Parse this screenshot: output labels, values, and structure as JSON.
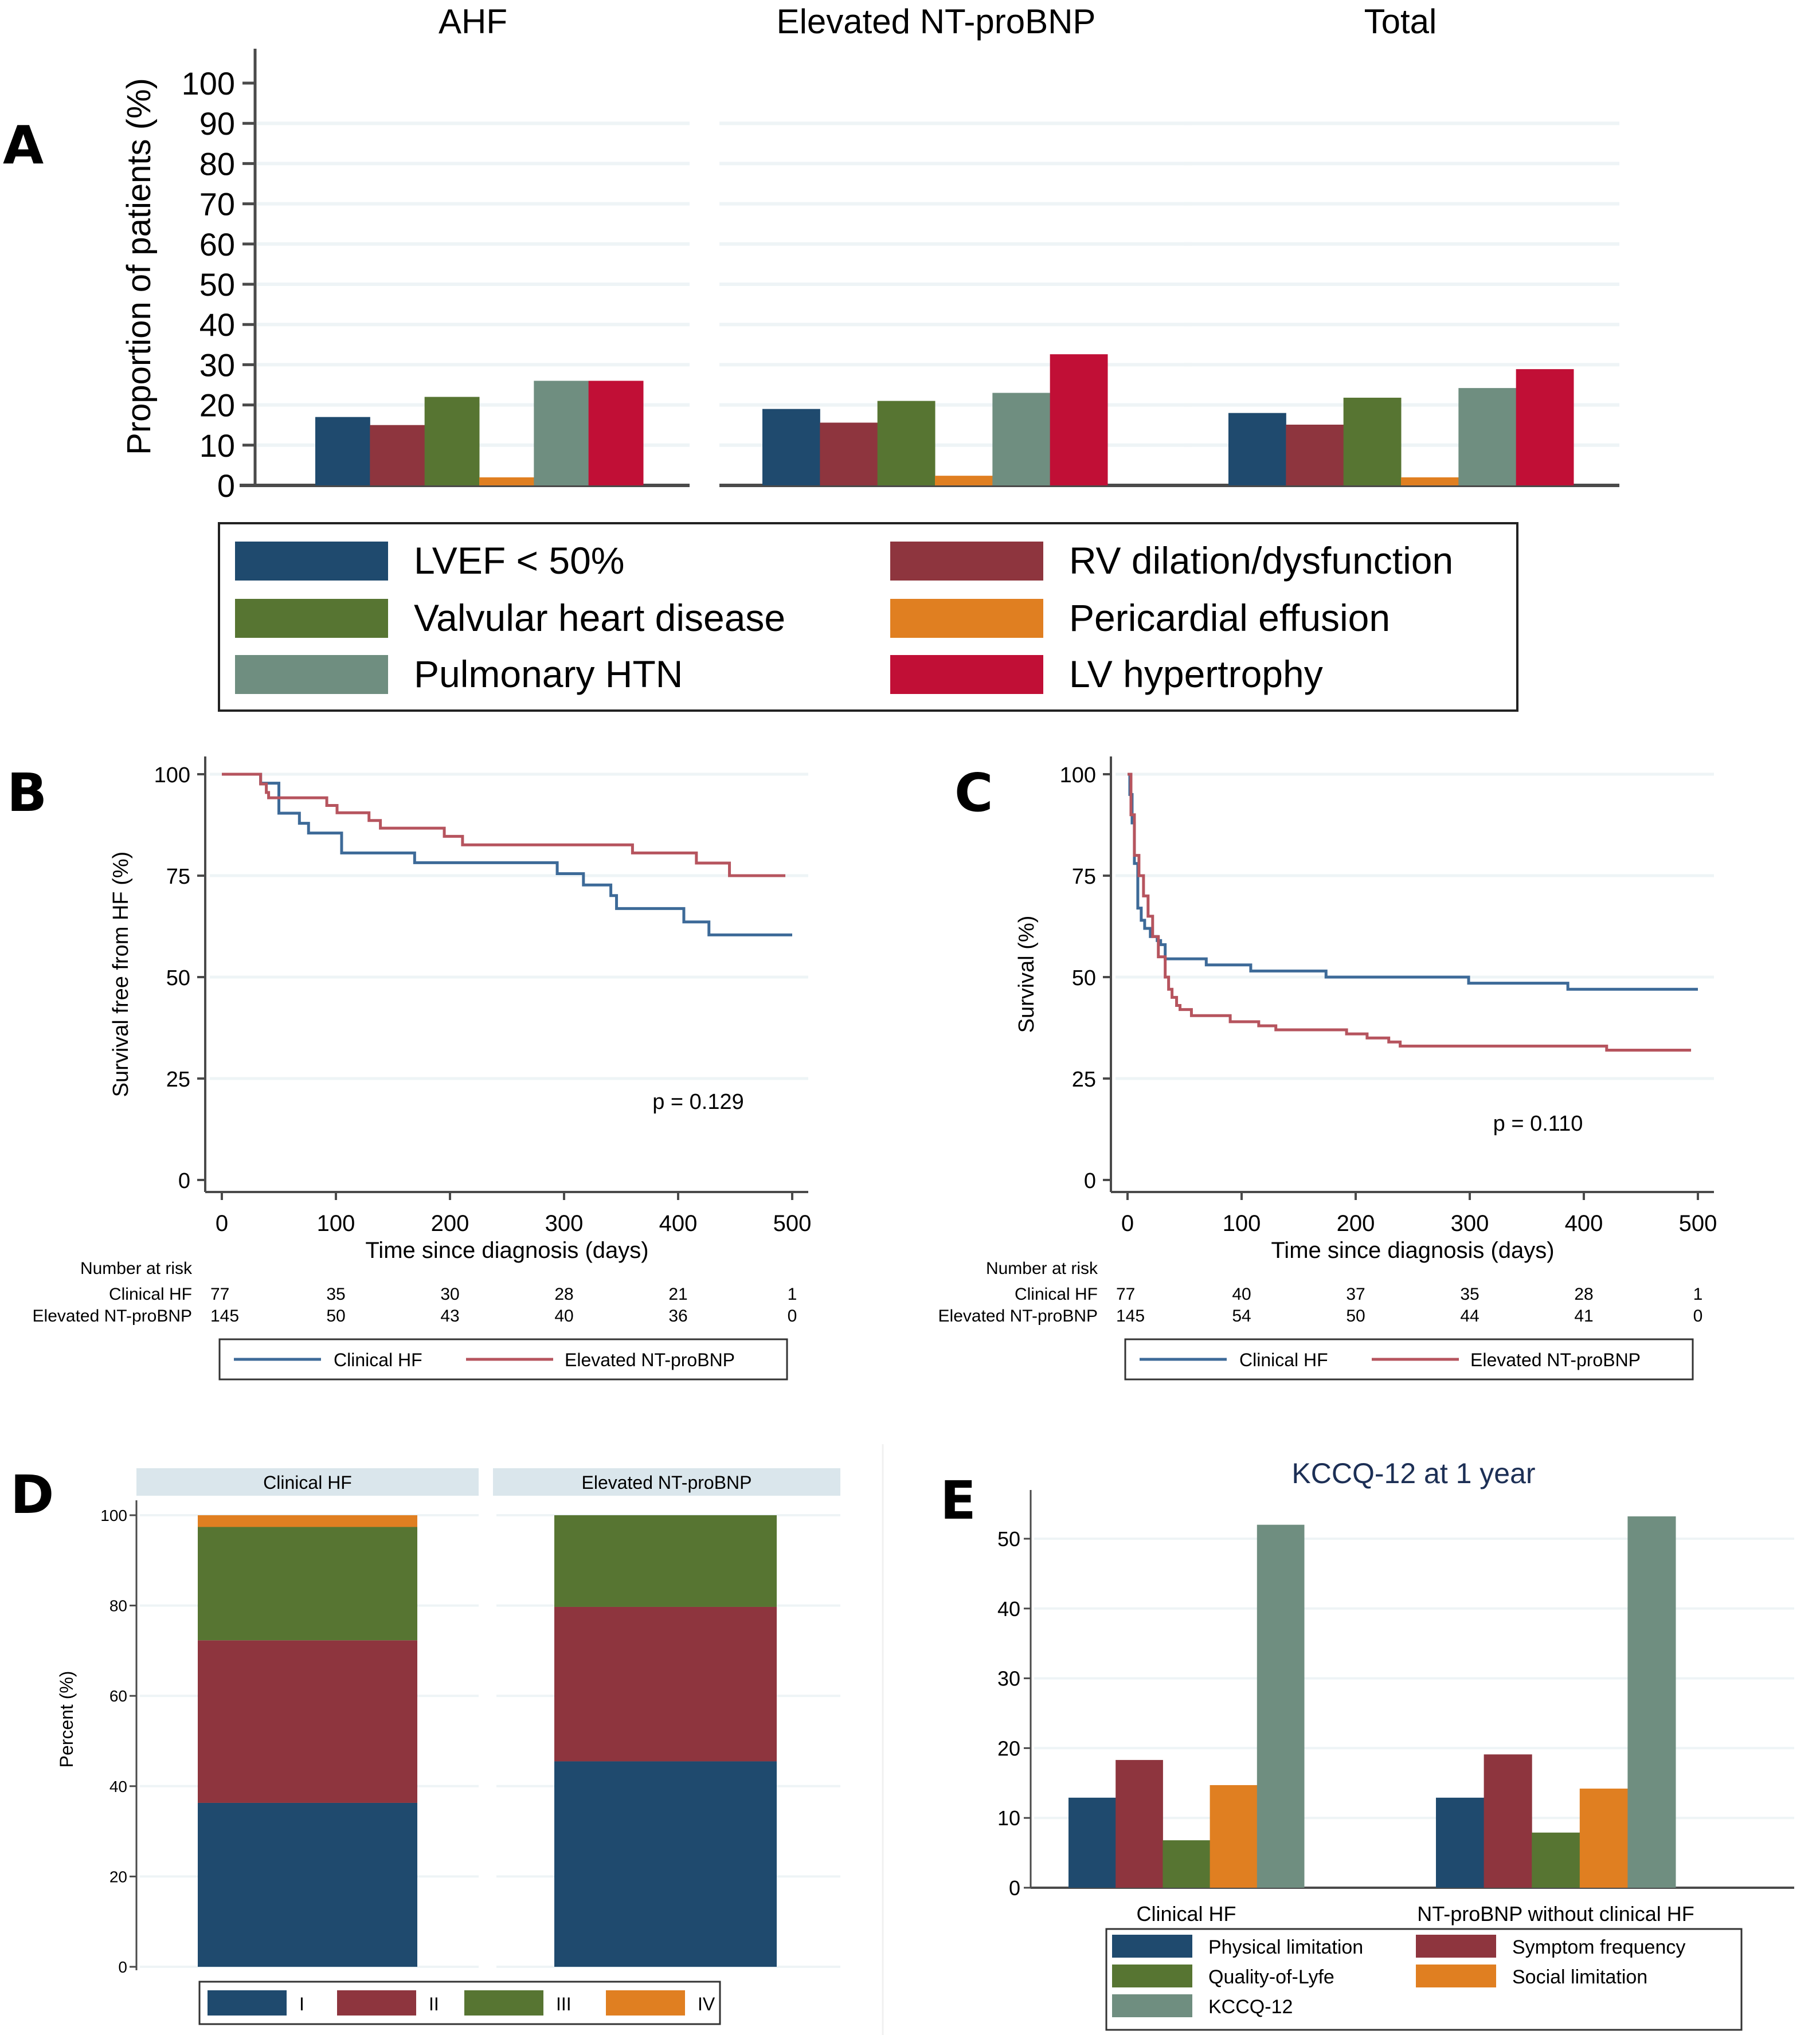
{
  "figure_labels": {
    "A": "A",
    "B": "B",
    "C": "C",
    "D": "D",
    "E": "E"
  },
  "colors": {
    "navy": "#1f4a6e",
    "maroon": "#8e353e",
    "green": "#577532",
    "orange": "#e07f21",
    "teal": "#6f8e80",
    "crimson": "#c10f36",
    "km_blue": "#3d6a98",
    "km_red": "#b6545e",
    "strip_bg": "#dae6ec",
    "title_navy": "#1c2f55"
  },
  "chart_data": [
    {
      "id": "A",
      "type": "bar",
      "facets": [
        "AHF",
        "Elevated NT-proBNP",
        "Total"
      ],
      "ylabel": "Proportion of patients (%)",
      "ylim": [
        0,
        100
      ],
      "yticks": [
        "0",
        "10",
        "20",
        "30",
        "40",
        "50",
        "60",
        "70",
        "80",
        "90",
        "100"
      ],
      "grid": true,
      "legend_position": "bottom",
      "series": [
        {
          "name": "LVEF < 50%",
          "color_key": "navy",
          "values": [
            17,
            19,
            18
          ]
        },
        {
          "name": "RV dilation/dysfunction",
          "color_key": "maroon",
          "values": [
            15,
            15.6,
            15.1
          ]
        },
        {
          "name": "Valvular heart disease",
          "color_key": "green",
          "values": [
            22,
            21,
            21.8
          ]
        },
        {
          "name": "Pericardial effusion",
          "color_key": "orange",
          "values": [
            2,
            2.4,
            2
          ]
        },
        {
          "name": "Pulmonary HTN",
          "color_key": "teal",
          "values": [
            26,
            23,
            24.2
          ]
        },
        {
          "name": "LV hypertrophy",
          "color_key": "crimson",
          "values": [
            26,
            32.6,
            28.9
          ]
        }
      ],
      "legend_order": [
        0,
        1,
        2,
        3,
        4,
        5
      ]
    },
    {
      "id": "B",
      "type": "line",
      "subtype": "kaplan-meier",
      "title": "",
      "xlabel": "Time since diagnosis (days)",
      "ylabel": "Survival free from HF (%)",
      "xlim": [
        0,
        500
      ],
      "ylim": [
        0,
        100
      ],
      "xticks": [
        "0",
        "100",
        "200",
        "300",
        "400",
        "500"
      ],
      "yticks": [
        "0",
        "25",
        "50",
        "75",
        "100"
      ],
      "grid": true,
      "annotation": "p = 0.129",
      "risk_table": {
        "title": "Number at risk",
        "rows": [
          {
            "label": "Clinical HF",
            "values": [
              "77",
              "35",
              "30",
              "28",
              "21",
              "1"
            ]
          },
          {
            "label": "Elevated NT-proBNP",
            "values": [
              "145",
              "50",
              "43",
              "40",
              "36",
              "0"
            ]
          }
        ]
      },
      "legend_position": "bottom",
      "series": [
        {
          "name": "Clinical HF",
          "color_key": "km_blue",
          "steps": [
            [
              0,
              100
            ],
            [
              34,
              97.8
            ],
            [
              50,
              90.4
            ],
            [
              68,
              87.9
            ],
            [
              76,
              85.5
            ],
            [
              105,
              80.6
            ],
            [
              169,
              78.2
            ],
            [
              294,
              75.5
            ],
            [
              317,
              72.7
            ],
            [
              341,
              70.1
            ],
            [
              346,
              66.9
            ],
            [
              405,
              63.6
            ],
            [
              427,
              60.4
            ],
            [
              500,
              60.4
            ]
          ]
        },
        {
          "name": "Elevated NT-proBNP",
          "color_key": "km_red",
          "steps": [
            [
              0,
              100
            ],
            [
              34,
              97.6
            ],
            [
              39,
              95.5
            ],
            [
              41,
              94.2
            ],
            [
              92,
              92.3
            ],
            [
              101,
              90.5
            ],
            [
              129,
              88.6
            ],
            [
              139,
              86.7
            ],
            [
              195,
              84.7
            ],
            [
              211,
              82.6
            ],
            [
              360,
              80.6
            ],
            [
              416,
              78.1
            ],
            [
              445,
              75.0
            ],
            [
              494,
              75.0
            ]
          ]
        }
      ]
    },
    {
      "id": "C",
      "type": "line",
      "subtype": "kaplan-meier",
      "title": "",
      "xlabel": "Time since diagnosis (days)",
      "ylabel": "Survival (%)",
      "xlim": [
        0,
        500
      ],
      "ylim": [
        0,
        100
      ],
      "xticks": [
        "0",
        "100",
        "200",
        "300",
        "400",
        "500"
      ],
      "yticks": [
        "0",
        "25",
        "50",
        "75",
        "100"
      ],
      "grid": true,
      "annotation": "p = 0.110",
      "risk_table": {
        "title": "Number at risk",
        "rows": [
          {
            "label": "Clinical HF",
            "values": [
              "77",
              "40",
              "37",
              "35",
              "28",
              "1"
            ]
          },
          {
            "label": "Elevated NT-proBNP",
            "values": [
              "145",
              "54",
              "50",
              "44",
              "41",
              "0"
            ]
          }
        ]
      },
      "legend_position": "bottom",
      "series": [
        {
          "name": "Clinical HF",
          "color_key": "km_blue",
          "steps": [
            [
              0,
              100
            ],
            [
              2,
              95
            ],
            [
              4,
              88
            ],
            [
              6,
              78
            ],
            [
              9,
              67
            ],
            [
              12,
              64
            ],
            [
              15,
              62
            ],
            [
              20,
              60
            ],
            [
              26,
              59
            ],
            [
              29,
              58
            ],
            [
              33,
              54.5
            ],
            [
              69,
              53
            ],
            [
              108,
              51.5
            ],
            [
              174,
              50
            ],
            [
              299,
              48.5
            ],
            [
              386,
              47
            ],
            [
              500,
              47
            ]
          ]
        },
        {
          "name": "Elevated NT-proBNP",
          "color_key": "km_red",
          "steps": [
            [
              0,
              100
            ],
            [
              3,
              90
            ],
            [
              6,
              80
            ],
            [
              10,
              75
            ],
            [
              14,
              70
            ],
            [
              18,
              65
            ],
            [
              22,
              60
            ],
            [
              27,
              55
            ],
            [
              33,
              50
            ],
            [
              36,
              47
            ],
            [
              39,
              45
            ],
            [
              43,
              43
            ],
            [
              46,
              42
            ],
            [
              56,
              40.5
            ],
            [
              90,
              39
            ],
            [
              115,
              38
            ],
            [
              130,
              37
            ],
            [
              192,
              36
            ],
            [
              210,
              35
            ],
            [
              229,
              34
            ],
            [
              239,
              33
            ],
            [
              420,
              32
            ],
            [
              494,
              32
            ]
          ]
        }
      ]
    },
    {
      "id": "D",
      "type": "bar",
      "subtype": "stacked",
      "facets": [
        "Clinical HF",
        "Elevated NT-proBNP"
      ],
      "ylabel": "Percent (%)",
      "ylim": [
        0,
        100
      ],
      "yticks": [
        "0",
        "20",
        "40",
        "60",
        "80",
        "100"
      ],
      "grid": true,
      "legend_position": "bottom",
      "series": [
        {
          "name": "I",
          "color_key": "navy",
          "values": [
            36.3,
            45.5
          ]
        },
        {
          "name": "II",
          "color_key": "maroon",
          "values": [
            36.0,
            34.2
          ]
        },
        {
          "name": "III",
          "color_key": "green",
          "values": [
            25.1,
            20.3
          ]
        },
        {
          "name": "IV",
          "color_key": "orange",
          "values": [
            2.6,
            0
          ]
        }
      ]
    },
    {
      "id": "E",
      "type": "bar",
      "title": "KCCQ-12 at 1 year",
      "categories": [
        "Clinical HF",
        "NT-proBNP without clinical HF"
      ],
      "ylabel": "",
      "ylim": [
        0,
        55
      ],
      "yticks": [
        "0",
        "10",
        "20",
        "30",
        "40",
        "50"
      ],
      "grid": true,
      "legend_position": "bottom",
      "series": [
        {
          "name": "Physical limitation",
          "color_key": "navy",
          "values": [
            12.9,
            12.9
          ]
        },
        {
          "name": "Symptom frequency",
          "color_key": "maroon",
          "values": [
            18.3,
            19.1
          ]
        },
        {
          "name": "Quality-of-Lyfe",
          "color_key": "green",
          "values": [
            6.8,
            7.9
          ]
        },
        {
          "name": "Social limitation",
          "color_key": "orange",
          "values": [
            14.7,
            14.2
          ]
        },
        {
          "name": "KCCQ-12",
          "color_key": "teal",
          "values": [
            52.0,
            53.2
          ]
        }
      ]
    }
  ]
}
